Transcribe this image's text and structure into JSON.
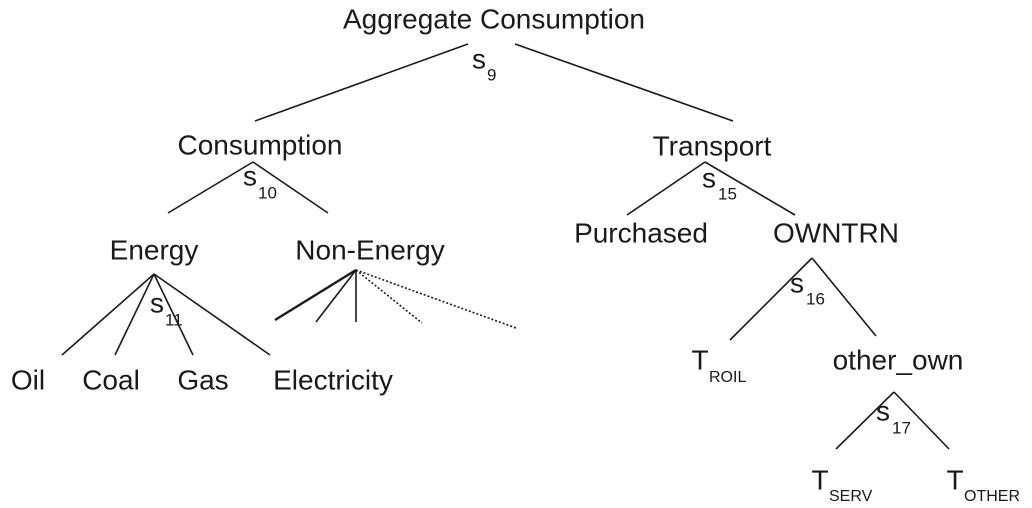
{
  "nodes": [
    {
      "label": "Aggregate Consumption",
      "elasticity": {
        "symbol": "s",
        "sub": "9"
      }
    },
    {
      "label": "Consumption",
      "elasticity": {
        "symbol": "s",
        "sub": "10"
      }
    },
    {
      "label": "Transport",
      "elasticity": {
        "symbol": "s",
        "sub": "15"
      }
    },
    {
      "label": "Energy",
      "elasticity": {
        "symbol": "s",
        "sub": "11"
      }
    },
    {
      "label": "Non-Energy"
    },
    {
      "label": "Purchased"
    },
    {
      "label": "OWNTRN",
      "elasticity": {
        "symbol": "s",
        "sub": "16"
      }
    },
    {
      "label": "Oil"
    },
    {
      "label": "Coal"
    },
    {
      "label": "Gas"
    },
    {
      "label": "Electricity"
    },
    {
      "label": "T",
      "sub": "ROIL"
    },
    {
      "label": "other_own",
      "elasticity": {
        "symbol": "s",
        "sub": "17"
      }
    },
    {
      "label": "T",
      "sub": "SERV"
    },
    {
      "label": "T",
      "sub": "OTHER"
    }
  ]
}
